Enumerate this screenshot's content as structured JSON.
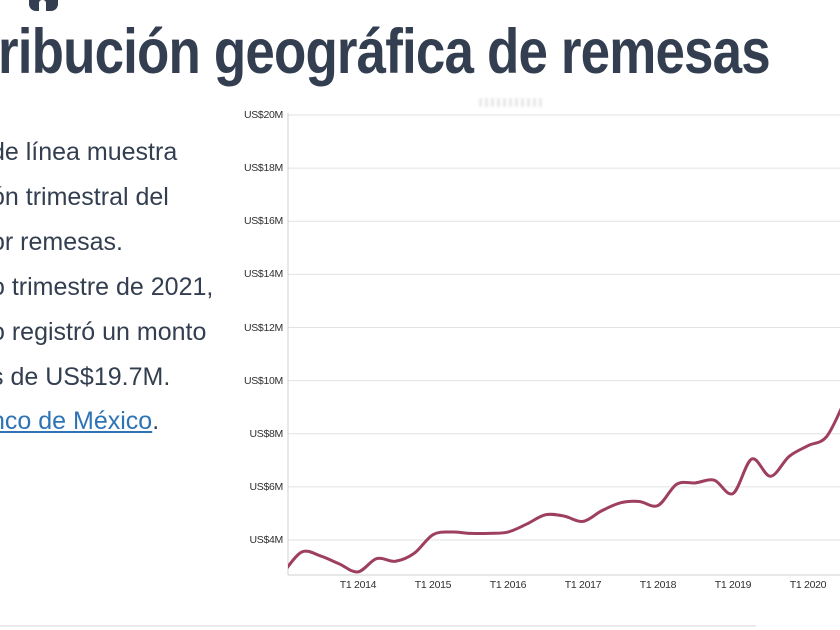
{
  "title": {
    "visible_text": "ribución geográfica de remesas"
  },
  "description": {
    "lines": [
      "de línea muestra",
      "ón trimestral del",
      "or remesas.",
      "o trimestre de 2021,",
      "o registró un monto",
      "s de US$19.7M."
    ]
  },
  "source": {
    "link_text": "nco de México",
    "suffix": "."
  },
  "colors": {
    "title_text": "#333f50",
    "body_text": "#333f50",
    "link": "#2e74b5",
    "line": "#9e3f60",
    "grid": "#e2e2e2",
    "axis": "#d0d0d0",
    "tick_text": "#2f2f2f"
  },
  "chart_data": {
    "type": "line",
    "title": "",
    "xlabel": "",
    "ylabel": "",
    "units": "US$M",
    "grid": true,
    "legend": "none",
    "ylim": [
      2.7,
      20
    ],
    "y_ticks": [
      20,
      18,
      16,
      14,
      12,
      10,
      8,
      6,
      4
    ],
    "y_tick_labels": [
      "US$20M",
      "US$18M",
      "US$16M",
      "US$14M",
      "US$12M",
      "US$10M",
      "US$8M",
      "US$6M",
      "US$4M"
    ],
    "x_tick_labels": [
      "T1 2014",
      "T1 2015",
      "T1 2016",
      "T1 2017",
      "T1 2018",
      "T1 2019",
      "T1 2020"
    ],
    "x": [
      "T1 2013",
      "T2 2013",
      "T3 2013",
      "T4 2013",
      "T1 2014",
      "T2 2014",
      "T3 2014",
      "T4 2014",
      "T1 2015",
      "T2 2015",
      "T3 2015",
      "T4 2015",
      "T1 2016",
      "T2 2016",
      "T3 2016",
      "T4 2016",
      "T1 2017",
      "T2 2017",
      "T3 2017",
      "T4 2017",
      "T1 2018",
      "T2 2018",
      "T3 2018",
      "T4 2018",
      "T1 2019",
      "T2 2019",
      "T3 2019",
      "T4 2019",
      "T1 2020",
      "T2 2020",
      "T3 2020"
    ],
    "values": [
      2.75,
      3.55,
      3.4,
      3.1,
      2.8,
      3.3,
      3.2,
      3.5,
      4.2,
      4.3,
      4.25,
      4.25,
      4.3,
      4.6,
      4.95,
      4.9,
      4.7,
      5.1,
      5.4,
      5.45,
      5.3,
      6.1,
      6.15,
      6.25,
      5.75,
      7.05,
      6.4,
      7.15,
      7.55,
      7.9,
      9.3
    ]
  }
}
